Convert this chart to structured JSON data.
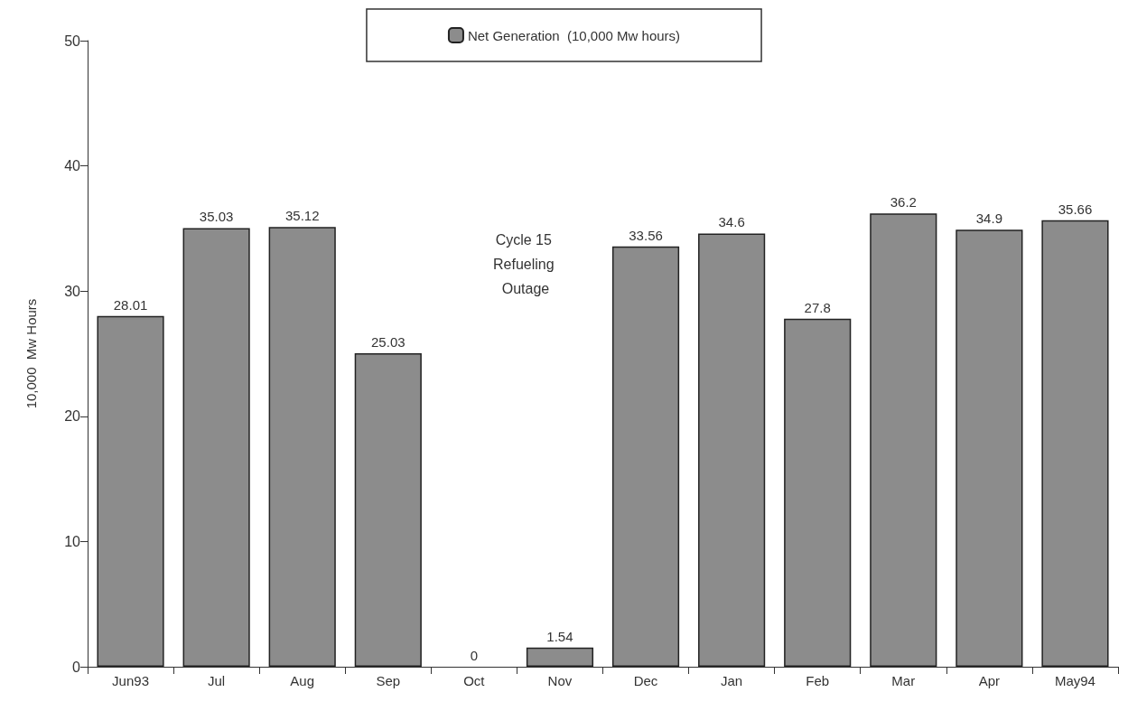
{
  "chart_data": {
    "type": "bar",
    "ylabel": "10,000  Mw Hours",
    "categories": [
      "Jun93",
      "Jul",
      "Aug",
      "Sep",
      "Oct",
      "Nov",
      "Dec",
      "Jan",
      "Feb",
      "Mar",
      "Apr",
      "May94"
    ],
    "series": [
      {
        "name": "Net Generation  (10,000 Mw hours)",
        "color": "#8c8c8c",
        "values": [
          28.01,
          35.03,
          35.12,
          25.03,
          0,
          1.54,
          33.56,
          34.6,
          27.8,
          36.2,
          34.9,
          35.66
        ]
      }
    ],
    "ylim": [
      0,
      50
    ],
    "yticks": [
      0,
      10,
      20,
      30,
      40,
      50
    ],
    "grid": false,
    "legend": "top",
    "data_labels": true,
    "annotations": [
      "Cycle 15 Refueling Outage"
    ]
  }
}
